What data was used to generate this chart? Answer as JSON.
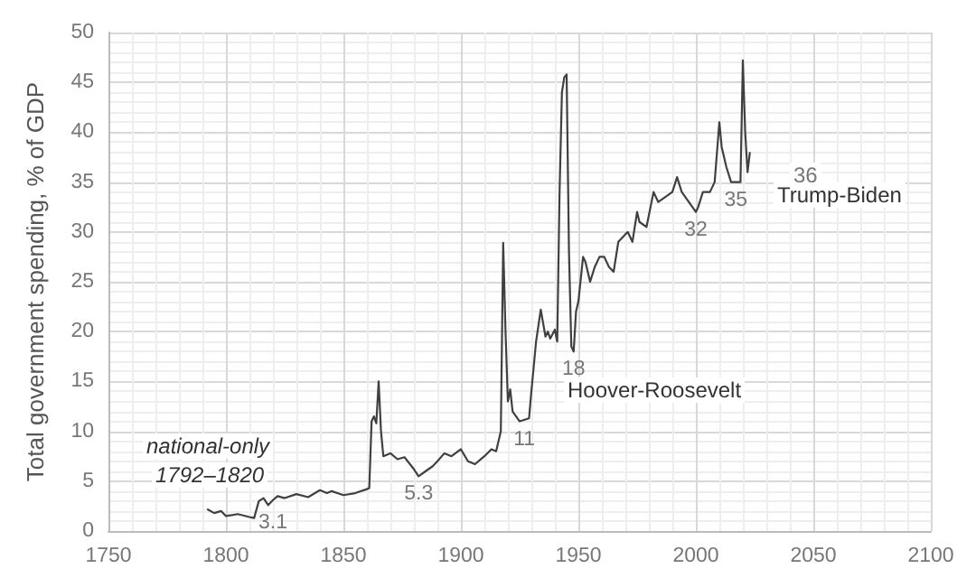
{
  "chart_data": {
    "type": "line",
    "ylabel": "Total government spending, % of GDP",
    "x": [
      1792,
      1795,
      1798,
      1800,
      1805,
      1810,
      1812,
      1814,
      1816,
      1818,
      1820,
      1822,
      1825,
      1830,
      1835,
      1840,
      1843,
      1845,
      1850,
      1855,
      1860,
      1861,
      1862,
      1863,
      1864,
      1865,
      1866,
      1867,
      1870,
      1873,
      1876,
      1880,
      1882,
      1885,
      1888,
      1890,
      1893,
      1896,
      1900,
      1903,
      1906,
      1910,
      1913,
      1915,
      1917,
      1918,
      1919,
      1920,
      1921,
      1922,
      1925,
      1929,
      1930,
      1932,
      1934,
      1936,
      1937,
      1938,
      1940,
      1941,
      1942,
      1943,
      1944,
      1945,
      1946,
      1947,
      1948,
      1949,
      1950,
      1952,
      1953,
      1955,
      1957,
      1959,
      1961,
      1963,
      1965,
      1967,
      1969,
      1971,
      1973,
      1975,
      1976,
      1979,
      1982,
      1984,
      1987,
      1990,
      1992,
      1994,
      1997,
      2000,
      2001,
      2003,
      2006,
      2008,
      2009,
      2010,
      2011,
      2013,
      2015,
      2017,
      2019,
      2020,
      2021,
      2022,
      2023
    ],
    "series": [
      {
        "color": "#404040",
        "values": [
          2.2,
          1.8,
          2.0,
          1.5,
          1.7,
          1.4,
          1.3,
          3.0,
          3.3,
          2.6,
          3.1,
          3.5,
          3.3,
          3.7,
          3.4,
          4.1,
          3.8,
          4.0,
          3.6,
          3.8,
          4.2,
          4.3,
          11,
          11.5,
          10.8,
          15,
          10,
          7.5,
          7.8,
          7.2,
          7.4,
          6.2,
          5.5,
          6.0,
          6.5,
          7.0,
          7.8,
          7.5,
          8.2,
          7.0,
          6.7,
          7.5,
          8.2,
          8.0,
          10,
          28.9,
          20,
          13,
          14.2,
          12,
          11,
          11.3,
          14,
          19,
          22.2,
          19.5,
          20,
          19.3,
          20.2,
          19,
          34,
          44,
          45.5,
          45.8,
          28,
          18.5,
          18,
          22,
          23,
          27.5,
          27,
          25,
          26.5,
          27.5,
          27.5,
          26.5,
          26,
          29,
          29.5,
          30,
          29,
          32,
          31,
          30.5,
          34,
          33,
          33.5,
          34,
          35.5,
          34,
          33,
          32,
          32.5,
          34,
          34,
          35,
          38,
          41,
          38.5,
          36.5,
          35,
          35,
          35,
          47.2,
          40,
          36,
          38
        ]
      }
    ],
    "xlim": [
      1750,
      2100
    ],
    "xticks": [
      1750,
      1800,
      1850,
      1900,
      1950,
      2000,
      2050,
      2100
    ],
    "ylim": [
      0,
      50
    ],
    "yticks": [
      0,
      5,
      10,
      15,
      20,
      25,
      30,
      35,
      40,
      45,
      50
    ],
    "grid": true,
    "line_style": "solid",
    "marker": "none",
    "annotations": [
      {
        "text": "3.1",
        "x": 1820,
        "y": 2.6
      },
      {
        "text": "5.3",
        "x": 1882,
        "y": 5.5
      },
      {
        "text": "11",
        "x": 1927,
        "y": 11
      },
      {
        "text": "18",
        "x": 1948,
        "y": 18
      },
      {
        "text": "32",
        "x": 2000,
        "y": 32
      },
      {
        "text": "35",
        "x": 2017,
        "y": 35
      },
      "36",
      "national-only",
      "1792–1820",
      "Hoover-Roosevelt",
      "Trump-Biden"
    ]
  }
}
